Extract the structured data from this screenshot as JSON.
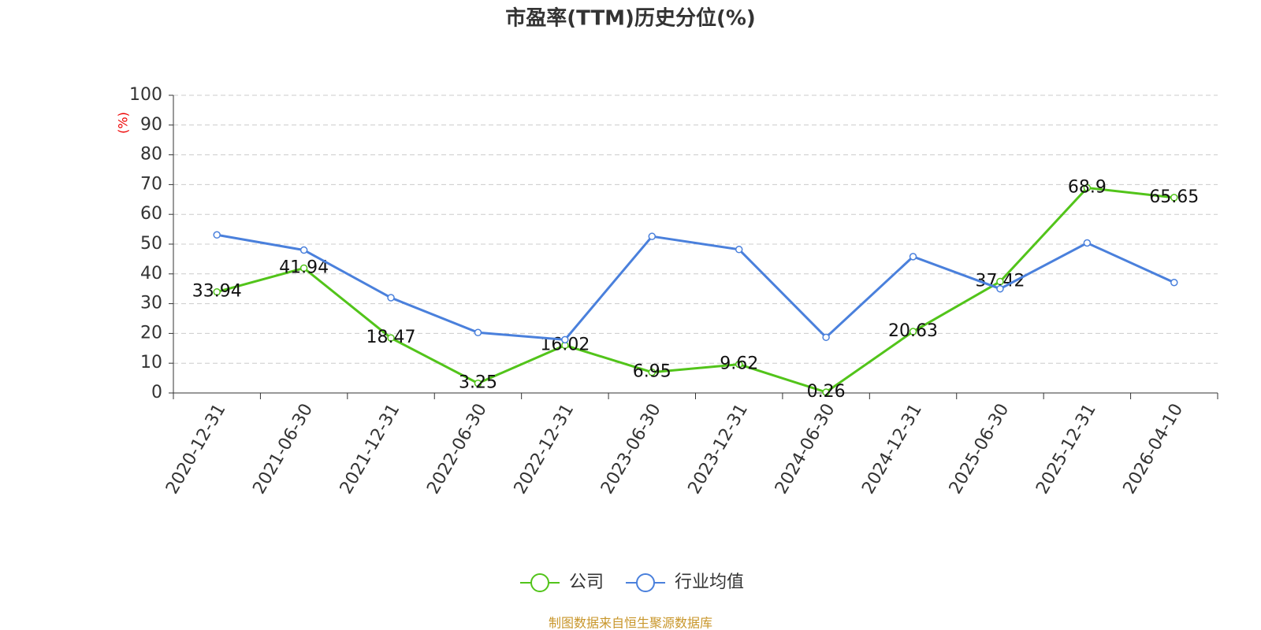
{
  "chart_data": {
    "type": "line",
    "title": "市盈率(TTM)历史分位(%)",
    "y_label": "(%)",
    "categories": [
      "2020-12-31",
      "2021-06-30",
      "2021-12-31",
      "2022-06-30",
      "2022-12-31",
      "2023-06-30",
      "2023-12-31",
      "2024-06-30",
      "2024-12-31",
      "2025-06-30",
      "2025-12-31",
      "2026-04-10"
    ],
    "series": [
      {
        "name": "公司",
        "color": "#52c41a",
        "values": [
          33.94,
          41.94,
          18.47,
          3.25,
          16.02,
          6.95,
          9.62,
          0.26,
          20.63,
          37.42,
          68.9,
          65.65
        ],
        "labels": true
      },
      {
        "name": "行业均值",
        "color": "#4a80dc",
        "values": [
          53.1,
          48,
          32,
          20.3,
          17.9,
          52.6,
          48.2,
          18.7,
          45.8,
          35,
          50.4,
          37.1
        ],
        "labels": false
      }
    ],
    "ylim": [
      0,
      100
    ],
    "yticks": [
      0,
      10,
      20,
      30,
      40,
      50,
      60,
      70,
      80,
      90,
      100
    ],
    "grid": true,
    "source": "制图数据来自恒生聚源数据库"
  }
}
